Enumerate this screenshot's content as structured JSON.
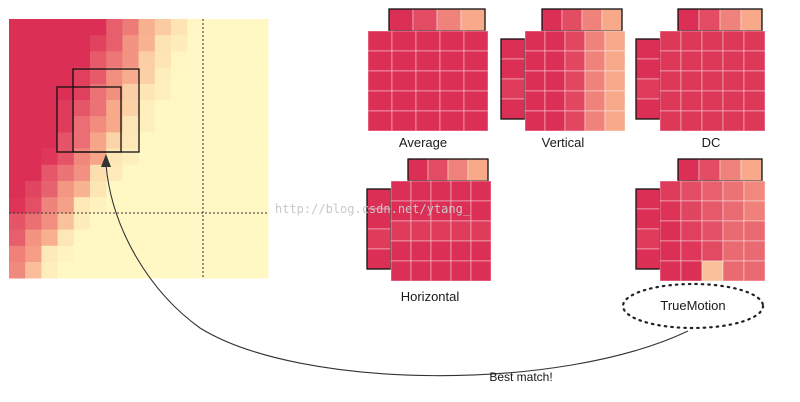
{
  "labels": {
    "average": "Average",
    "vertical": "Vertical",
    "dc": "DC",
    "horizontal": "Horizontal",
    "truemotion": "TrueMotion",
    "best_match": "Best match!"
  },
  "watermark": "http://blog.csdn.net/ytang_",
  "colors": {
    "deep": "#dc2f55",
    "pink": "#ea6a72",
    "salmon": "#f7a98a",
    "light": "#fde3b2",
    "pale": "#fff7c4",
    "outline": "#111111"
  }
}
